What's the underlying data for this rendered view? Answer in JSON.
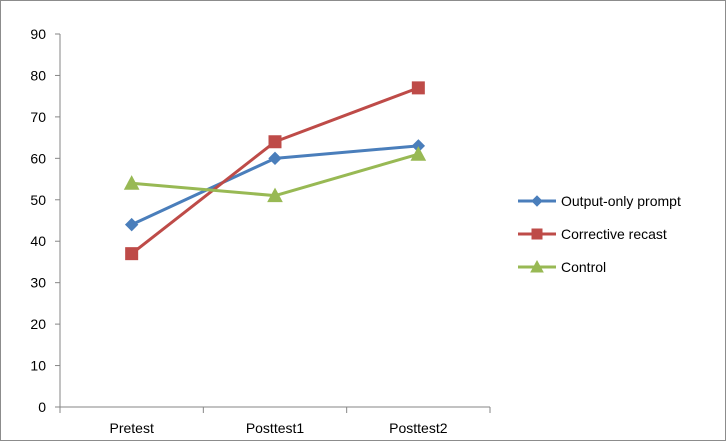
{
  "chart_data": {
    "type": "line",
    "categories": [
      "Pretest",
      "Posttest1",
      "Posttest2"
    ],
    "ylim": [
      0,
      90
    ],
    "yticks": [
      0,
      10,
      20,
      30,
      40,
      50,
      60,
      70,
      80,
      90
    ],
    "grid": false,
    "legend_position": "right",
    "series": [
      {
        "name": "Output-only prompt",
        "values": [
          44,
          60,
          63
        ],
        "color": "#4a7ebb",
        "marker": "diamond"
      },
      {
        "name": "Corrective recast",
        "values": [
          37,
          64,
          77
        ],
        "color": "#be4b48",
        "marker": "square"
      },
      {
        "name": "Control",
        "values": [
          54,
          51,
          61
        ],
        "color": "#98b954",
        "marker": "triangle"
      }
    ]
  }
}
